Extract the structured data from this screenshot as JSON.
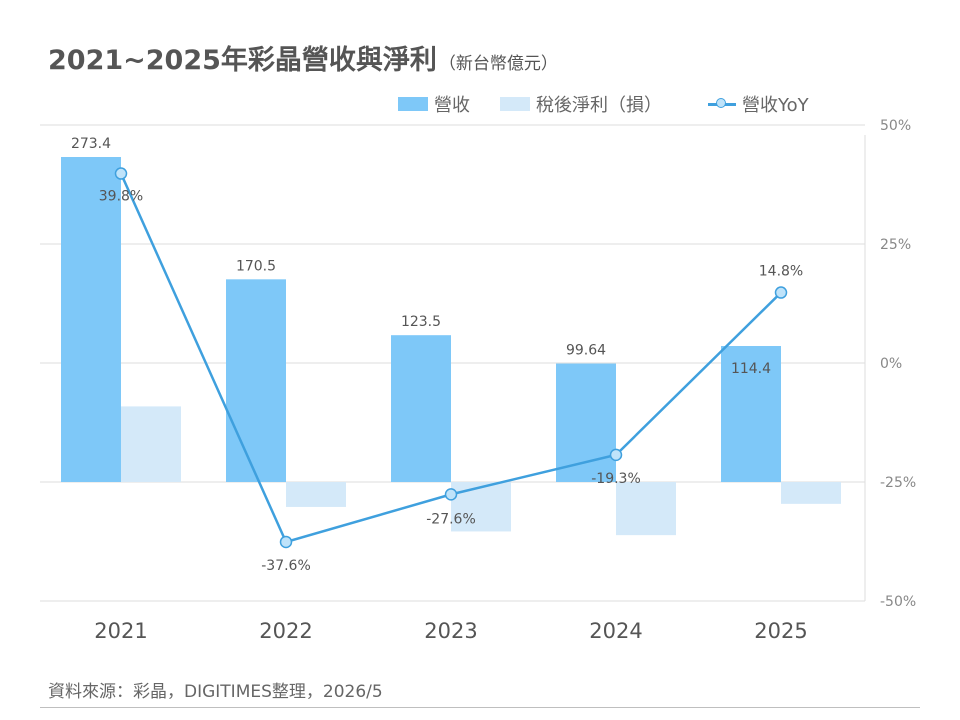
{
  "title": {
    "main": "2021~2025年彩晶營收與淨利",
    "unit": "（新台幣億元）"
  },
  "legend": [
    {
      "label": "營收",
      "color": "#7ec8f8",
      "kind": "bar"
    },
    {
      "label": "稅後淨利（損）",
      "color": "#d4e9f9",
      "kind": "bar"
    },
    {
      "label": "營收YoY",
      "color": "#3fa0de",
      "kind": "line"
    }
  ],
  "source": "資料來源：彩晶，DIGITIMES整理，2026/5",
  "chart_data": {
    "type": "bar",
    "categories": [
      "2021",
      "2022",
      "2023",
      "2024",
      "2025"
    ],
    "series": [
      {
        "name": "營收",
        "type": "bar",
        "axis": "left",
        "color": "#7ec8f8",
        "values": [
          273.4,
          170.5,
          123.5,
          99.64,
          114.4
        ],
        "labels": [
          "273.4",
          "170.5",
          "123.5",
          "99.64",
          "114.4"
        ]
      },
      {
        "name": "稅後淨利（損）",
        "type": "bar",
        "axis": "left",
        "color": "#d4e9f9",
        "values": [
          63.6,
          -21.0,
          -41.6,
          -44.7,
          -18.4
        ],
        "labels": []
      },
      {
        "name": "營收YoY",
        "type": "line",
        "axis": "right",
        "color": "#3fa0de",
        "values": [
          39.8,
          -37.6,
          -27.6,
          -19.3,
          14.8
        ],
        "labels": [
          "39.8%",
          "-37.6%",
          "-27.6%",
          "-19.3%",
          "14.8%"
        ]
      }
    ],
    "y_left": {
      "zero_at_right_value": -25,
      "scale_note": "left axis not printed"
    },
    "y_right": {
      "ylim": [
        -50,
        50
      ],
      "ticks": [
        "50%",
        "25%",
        "0%",
        "-25%",
        "-50%"
      ],
      "tick_values": [
        50,
        25,
        0,
        -25,
        -50
      ]
    },
    "grid": true,
    "legend_position": "top-right"
  }
}
